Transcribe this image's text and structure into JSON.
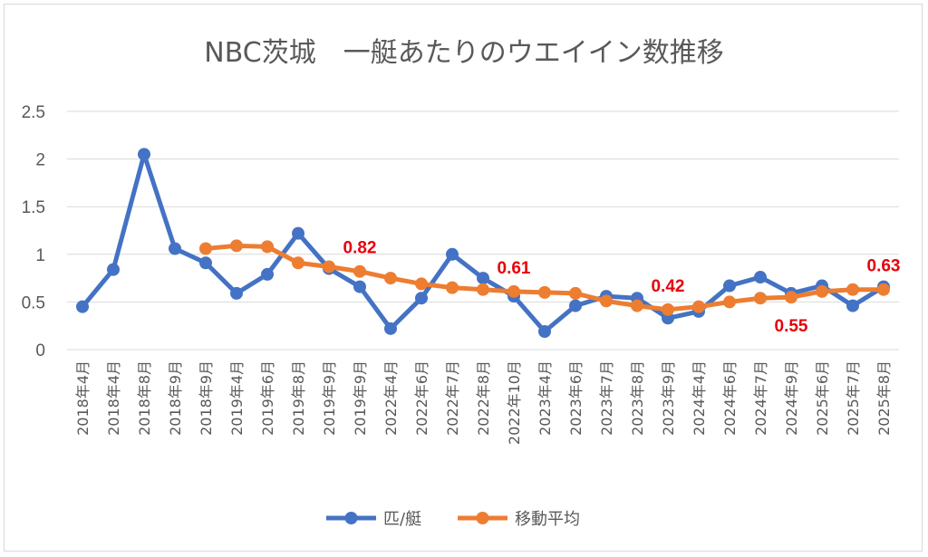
{
  "chart_data": {
    "type": "line",
    "title": "NBC茨城　一艇あたりのウエイイン数推移",
    "categories": [
      "2018年4月",
      "2018年4月",
      "2018年8月",
      "2018年9月",
      "2018年9月",
      "2019年4月",
      "2019年6月",
      "2019年8月",
      "2019年9月",
      "2019年9月",
      "2022年4月",
      "2022年6月",
      "2022年7月",
      "2022年8月",
      "2022年10月",
      "2023年4月",
      "2023年6月",
      "2023年7月",
      "2023年8月",
      "2023年9月",
      "2024年4月",
      "2024年6月",
      "2024年7月",
      "2024年9月",
      "2025年6月",
      "2025年7月",
      "2025年8月"
    ],
    "series": [
      {
        "name": "匹/艇",
        "color": "#4472c4",
        "values": [
          0.45,
          0.84,
          2.05,
          1.06,
          0.91,
          0.59,
          0.79,
          1.22,
          0.85,
          0.66,
          0.22,
          0.54,
          1.0,
          0.75,
          0.56,
          0.19,
          0.46,
          0.56,
          0.54,
          0.33,
          0.4,
          0.67,
          0.76,
          0.59,
          0.67,
          0.46,
          0.66
        ]
      },
      {
        "name": "移動平均",
        "color": "#ed7d31",
        "values": [
          null,
          null,
          null,
          null,
          1.06,
          1.09,
          1.08,
          0.91,
          0.87,
          0.82,
          0.75,
          0.69,
          0.65,
          0.63,
          0.61,
          0.6,
          0.59,
          0.51,
          0.46,
          0.42,
          0.45,
          0.5,
          0.54,
          0.55,
          0.61,
          0.63,
          0.63
        ]
      }
    ],
    "ylim": [
      0,
      2.5
    ],
    "yticks": [
      0,
      0.5,
      1,
      1.5,
      2,
      2.5
    ],
    "ytick_labels": [
      "0",
      "0.5",
      "1",
      "1.5",
      "2",
      "2.5"
    ],
    "xlabel": "",
    "ylabel": "",
    "grid": true,
    "legend": "bottom",
    "annotations": [
      {
        "text": "0.82",
        "index": 9,
        "placement": "above"
      },
      {
        "text": "0.61",
        "index": 14,
        "placement": "above"
      },
      {
        "text": "0.42",
        "index": 19,
        "placement": "above"
      },
      {
        "text": "0.55",
        "index": 23,
        "placement": "below"
      },
      {
        "text": "0.63",
        "index": 26,
        "placement": "above"
      }
    ]
  }
}
